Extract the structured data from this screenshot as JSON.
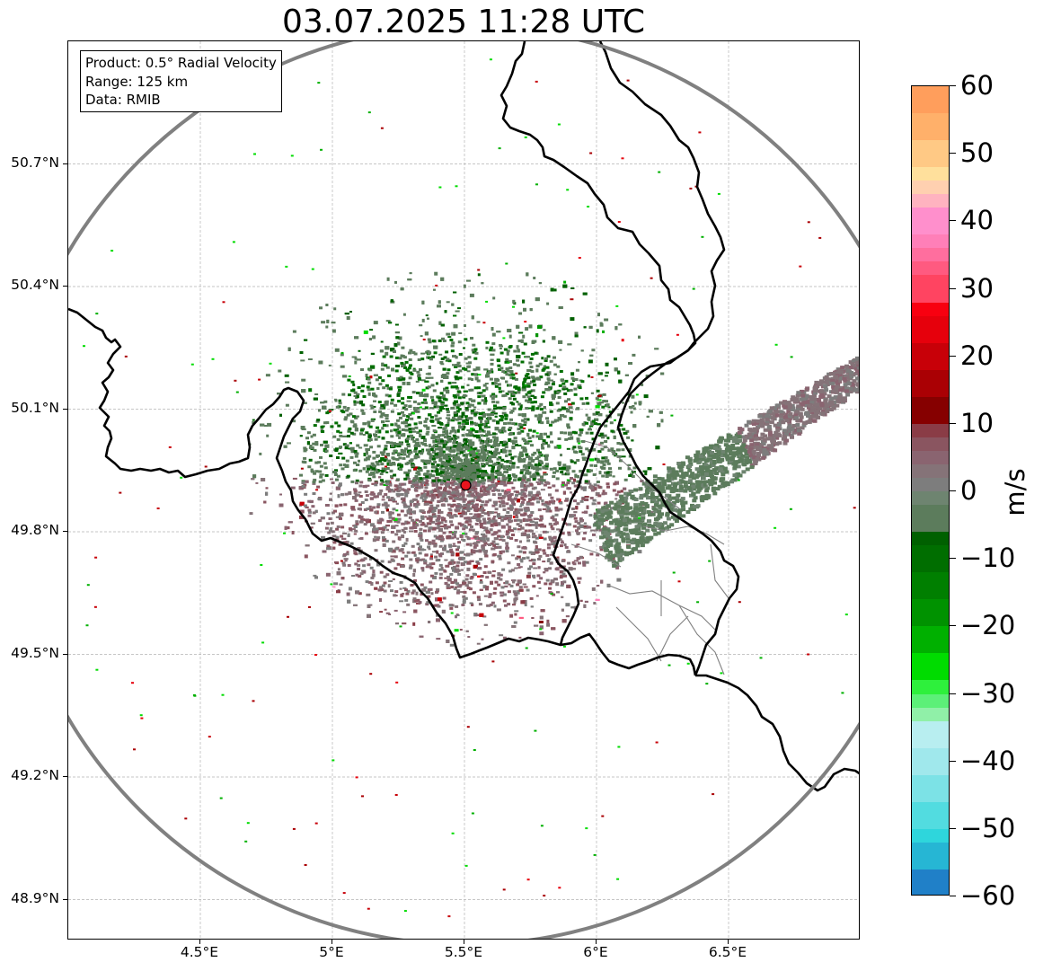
{
  "title": "03.07.2025 11:28 UTC",
  "info_box": {
    "product": "Product: 0.5° Radial Velocity",
    "range": "Range: 125 km",
    "source": "Data: RMIB"
  },
  "map": {
    "lon_range": [
      4.0,
      7.0
    ],
    "lat_range": [
      48.8,
      51.0
    ],
    "radar_site": {
      "lon": 5.505,
      "lat": 49.914
    },
    "range_circle_km": 125,
    "gridlines": true,
    "y_ticks": [
      {
        "value": 48.9,
        "label": "48.9°N"
      },
      {
        "value": 49.2,
        "label": "49.2°N"
      },
      {
        "value": 49.5,
        "label": "49.5°N"
      },
      {
        "value": 49.8,
        "label": "49.8°N"
      },
      {
        "value": 50.1,
        "label": "50.1°N"
      },
      {
        "value": 50.4,
        "label": "50.4°N"
      },
      {
        "value": 50.7,
        "label": "50.7°N"
      }
    ],
    "x_ticks": [
      {
        "value": 4.5,
        "label": "4.5°E"
      },
      {
        "value": 5.0,
        "label": "5°E"
      },
      {
        "value": 5.5,
        "label": "5.5°E"
      },
      {
        "value": 6.0,
        "label": "6°E"
      },
      {
        "value": 6.5,
        "label": "6.5°E"
      }
    ],
    "colors": {
      "border": "#000000",
      "region_border": "#808080",
      "range_circle": "#808080",
      "grid": "#b4b4b4",
      "radar_marker": "#e8141e"
    }
  },
  "colorbar": {
    "unit": "m/s",
    "range": [
      -60,
      60
    ],
    "ticks": [
      {
        "value": 60,
        "label": "60"
      },
      {
        "value": 50,
        "label": "50"
      },
      {
        "value": 40,
        "label": "40"
      },
      {
        "value": 30,
        "label": "30"
      },
      {
        "value": 20,
        "label": "20"
      },
      {
        "value": 10,
        "label": "10"
      },
      {
        "value": 0,
        "label": "0"
      },
      {
        "value": -10,
        "label": "−10"
      },
      {
        "value": -20,
        "label": "−20"
      },
      {
        "value": -30,
        "label": "−30"
      },
      {
        "value": -40,
        "label": "−40"
      },
      {
        "value": -50,
        "label": "−50"
      },
      {
        "value": -60,
        "label": "−60"
      }
    ],
    "stops": [
      {
        "from": 56,
        "to": 60,
        "color": "#ff9e5c"
      },
      {
        "from": 52,
        "to": 56,
        "color": "#ffb06a"
      },
      {
        "from": 48,
        "to": 52,
        "color": "#ffc985"
      },
      {
        "from": 46,
        "to": 48,
        "color": "#ffe09c"
      },
      {
        "from": 44,
        "to": 46,
        "color": "#ffd0b0"
      },
      {
        "from": 42,
        "to": 44,
        "color": "#ffb3c0"
      },
      {
        "from": 38,
        "to": 42,
        "color": "#ff8fcc"
      },
      {
        "from": 36,
        "to": 38,
        "color": "#ff7fb8"
      },
      {
        "from": 34,
        "to": 36,
        "color": "#ff6e9e"
      },
      {
        "from": 32,
        "to": 34,
        "color": "#ff5a80"
      },
      {
        "from": 28,
        "to": 32,
        "color": "#ff4461"
      },
      {
        "from": 26,
        "to": 28,
        "color": "#f80010"
      },
      {
        "from": 22,
        "to": 26,
        "color": "#e6000c"
      },
      {
        "from": 18,
        "to": 22,
        "color": "#c80008"
      },
      {
        "from": 14,
        "to": 18,
        "color": "#aa0004"
      },
      {
        "from": 10,
        "to": 14,
        "color": "#860000"
      },
      {
        "from": 8,
        "to": 10,
        "color": "#8a3c46"
      },
      {
        "from": 6,
        "to": 8,
        "color": "#8a5560"
      },
      {
        "from": 4,
        "to": 6,
        "color": "#8a6470"
      },
      {
        "from": 2,
        "to": 4,
        "color": "#857378"
      },
      {
        "from": 0,
        "to": 2,
        "color": "#7d7d7d"
      },
      {
        "from": -2,
        "to": 0,
        "color": "#6e8470"
      },
      {
        "from": -6,
        "to": -2,
        "color": "#5c7c5c"
      },
      {
        "from": -8,
        "to": -6,
        "color": "#006000"
      },
      {
        "from": -12,
        "to": -8,
        "color": "#006e00"
      },
      {
        "from": -16,
        "to": -12,
        "color": "#007f00"
      },
      {
        "from": -20,
        "to": -16,
        "color": "#009200"
      },
      {
        "from": -24,
        "to": -20,
        "color": "#00b000"
      },
      {
        "from": -28,
        "to": -24,
        "color": "#00dc00"
      },
      {
        "from": -30,
        "to": -28,
        "color": "#2ef03c"
      },
      {
        "from": -32,
        "to": -30,
        "color": "#5cf078"
      },
      {
        "from": -34,
        "to": -32,
        "color": "#90f0a8"
      },
      {
        "from": -38,
        "to": -34,
        "color": "#b8eef0"
      },
      {
        "from": -42,
        "to": -38,
        "color": "#a0e8ec"
      },
      {
        "from": -46,
        "to": -42,
        "color": "#7ce2e6"
      },
      {
        "from": -50,
        "to": -46,
        "color": "#52dce0"
      },
      {
        "from": -52,
        "to": -50,
        "color": "#2ed6dc"
      },
      {
        "from": -56,
        "to": -52,
        "color": "#26b6d4"
      },
      {
        "from": -60,
        "to": -56,
        "color": "#2080c8"
      }
    ]
  }
}
